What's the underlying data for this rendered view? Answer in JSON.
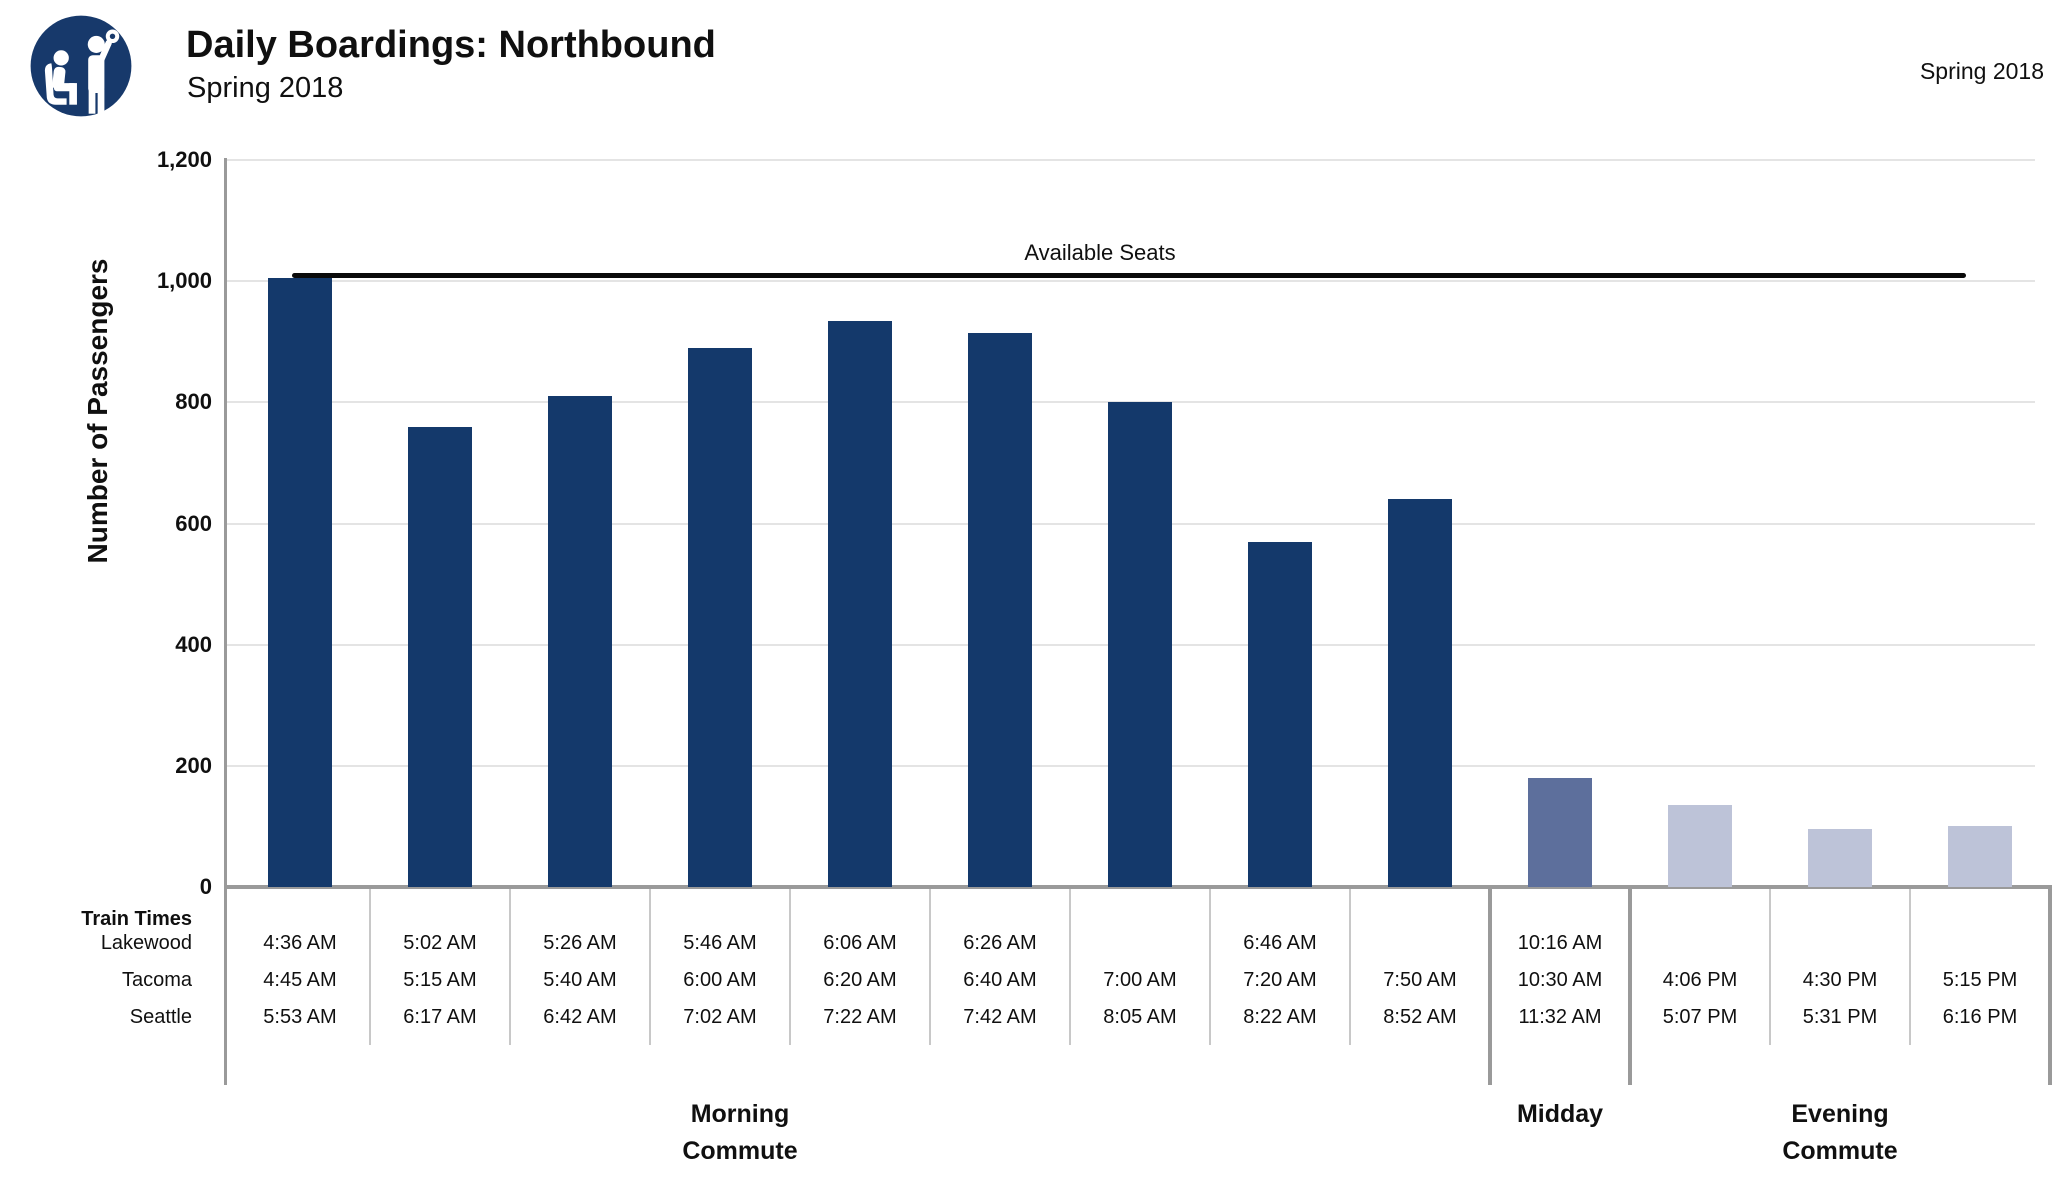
{
  "header": {
    "title": "Daily Boardings: Northbound",
    "subtitle": "Spring 2018",
    "corner_note": "Spring 2018",
    "logo_icon": "transit-riders-icon"
  },
  "chart_data": {
    "type": "bar",
    "title": "Daily Boardings: Northbound",
    "subtitle": "Spring 2018",
    "ylabel": "Number of Passengers",
    "ylim": [
      0,
      1200
    ],
    "ytick_labels": [
      "0",
      "200",
      "400",
      "600",
      "800",
      "1,000",
      "1,200"
    ],
    "grid": "horizontal",
    "legend": "none",
    "reference_line": {
      "label": "Available Seats",
      "value": 1010
    },
    "table_header": "Train Times",
    "station_rows": [
      "Lakewood",
      "Tacoma",
      "Seattle"
    ],
    "group_labels": {
      "morning": "Morning\nCommute",
      "midday": "Midday",
      "evening": "Evening\nCommute"
    },
    "bars": [
      {
        "group": "morning",
        "value": 1005,
        "lakewood": "4:36 AM",
        "tacoma": "4:45 AM",
        "seattle": "5:53 AM"
      },
      {
        "group": "morning",
        "value": 760,
        "lakewood": "5:02 AM",
        "tacoma": "5:15 AM",
        "seattle": "6:17 AM"
      },
      {
        "group": "morning",
        "value": 810,
        "lakewood": "5:26 AM",
        "tacoma": "5:40 AM",
        "seattle": "6:42 AM"
      },
      {
        "group": "morning",
        "value": 890,
        "lakewood": "5:46 AM",
        "tacoma": "6:00 AM",
        "seattle": "7:02 AM"
      },
      {
        "group": "morning",
        "value": 935,
        "lakewood": "6:06 AM",
        "tacoma": "6:20 AM",
        "seattle": "7:22 AM"
      },
      {
        "group": "morning",
        "value": 915,
        "lakewood": "6:26 AM",
        "tacoma": "6:40 AM",
        "seattle": "7:42 AM"
      },
      {
        "group": "morning",
        "value": 800,
        "lakewood": "",
        "tacoma": "7:00 AM",
        "seattle": "8:05 AM"
      },
      {
        "group": "morning",
        "value": 570,
        "lakewood": "6:46 AM",
        "tacoma": "7:20 AM",
        "seattle": "8:22 AM"
      },
      {
        "group": "morning",
        "value": 640,
        "lakewood": "",
        "tacoma": "7:50 AM",
        "seattle": "8:52 AM"
      },
      {
        "group": "midday",
        "value": 180,
        "lakewood": "10:16 AM",
        "tacoma": "10:30 AM",
        "seattle": "11:32 AM"
      },
      {
        "group": "evening",
        "value": 135,
        "lakewood": "",
        "tacoma": "4:06 PM",
        "seattle": "5:07 PM"
      },
      {
        "group": "evening",
        "value": 95,
        "lakewood": "",
        "tacoma": "4:30 PM",
        "seattle": "5:31 PM"
      },
      {
        "group": "evening",
        "value": 100,
        "lakewood": "",
        "tacoma": "5:15 PM",
        "seattle": "6:16 PM"
      }
    ]
  },
  "colors": {
    "morning_bar": "#14396B",
    "midday_bar": "#5D6F9C",
    "evening_bar": "#BDC3D8",
    "logo_navy": "#17396B",
    "reference_line": "#0A0A0A",
    "gridline": "#E4E4E4",
    "axis_gray": "#9A9A9A",
    "divider_light": "#C8C8C8",
    "text": "#101010"
  }
}
